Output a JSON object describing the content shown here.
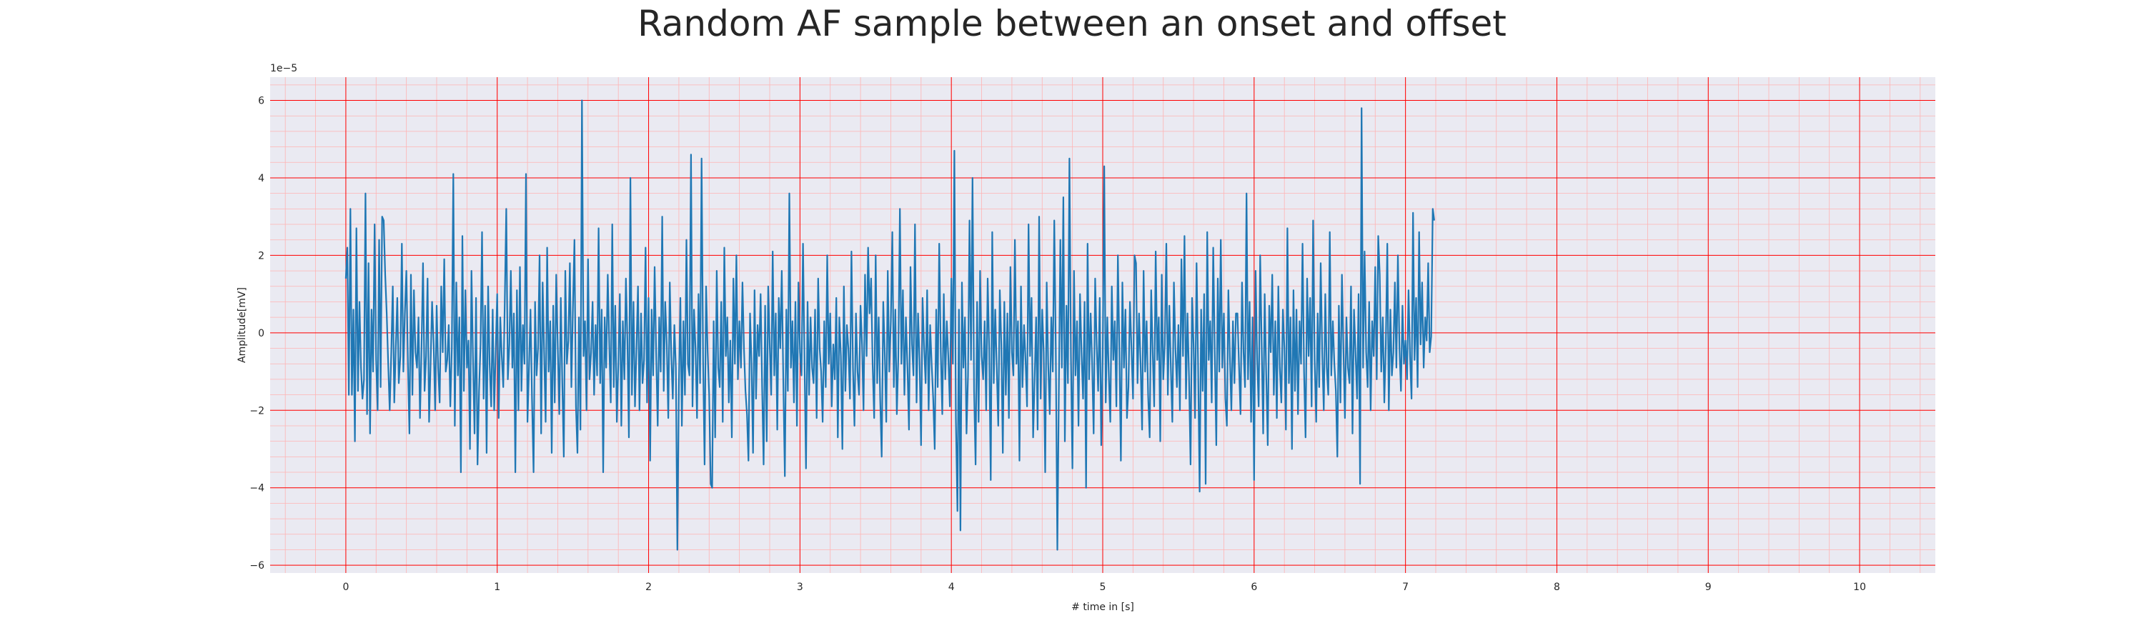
{
  "chart_data": {
    "type": "line",
    "title": "Random AF sample between an onset and offset",
    "xlabel": "# time in [s]",
    "ylabel": "Amplitude[mV]",
    "y_offset_label": "1e−5",
    "xlim": [
      -0.5,
      10.5
    ],
    "ylim": [
      -6.2,
      6.6
    ],
    "x_ticks": [
      0,
      1,
      2,
      3,
      4,
      5,
      6,
      7,
      8,
      9,
      10
    ],
    "x_tick_labels": [
      "0",
      "1",
      "2",
      "3",
      "4",
      "5",
      "6",
      "7",
      "8",
      "9",
      "10"
    ],
    "y_ticks": [
      -6,
      -4,
      -2,
      0,
      2,
      4,
      6
    ],
    "y_tick_labels": [
      "−6",
      "−4",
      "−2",
      "0",
      "2",
      "4",
      "6"
    ],
    "grid": true,
    "minor_grid": true,
    "colors": {
      "background": "#eaeaf2",
      "major_grid": "#ff0000",
      "minor_grid": "#ffb3b3",
      "line": "#1f77b4"
    },
    "series": [
      {
        "x_start": 0,
        "x_step": 0.01,
        "values": [
          1.4,
          2.2,
          -1.6,
          3.2,
          -1.6,
          0.6,
          -2.8,
          2.7,
          -1.5,
          0.8,
          -0.9,
          -1.7,
          -1.2,
          3.6,
          -2.1,
          1.8,
          -2.6,
          0.6,
          -1.0,
          2.8,
          -0.7,
          -2.0,
          2.4,
          -1.4,
          3.0,
          2.9,
          1.5,
          0.5,
          -0.8,
          -2.0,
          -0.5,
          1.2,
          -1.8,
          -0.4,
          0.9,
          -1.3,
          -0.6,
          2.3,
          -1.0,
          0.5,
          1.6,
          -0.8,
          -2.6,
          1.5,
          -1.6,
          1.1,
          -0.5,
          -0.9,
          0.4,
          -2.2,
          -0.4,
          1.8,
          -1.5,
          -0.6,
          1.4,
          -2.3,
          -0.8,
          0.8,
          -0.3,
          -2.0,
          0.7,
          -0.9,
          -1.8,
          1.2,
          -0.5,
          1.9,
          -1.0,
          -0.7,
          0.2,
          -1.9,
          -0.4,
          4.1,
          -2.4,
          1.3,
          -1.1,
          0.4,
          -3.6,
          2.5,
          -1.5,
          1.1,
          -0.9,
          -0.2,
          -3.0,
          1.6,
          -0.6,
          -2.6,
          0.9,
          -3.4,
          -1.5,
          -0.3,
          2.6,
          -1.7,
          0.7,
          -3.1,
          1.2,
          -0.8,
          -1.9,
          0.6,
          -2.0,
          -0.5,
          1.0,
          -2.2,
          0.4,
          -0.6,
          -1.4,
          0.8,
          3.2,
          -1.2,
          -0.3,
          1.6,
          -0.9,
          0.5,
          -3.6,
          1.1,
          -2.0,
          1.7,
          -1.5,
          0.2,
          -0.8,
          4.1,
          -2.3,
          -0.9,
          0.6,
          -1.7,
          -3.6,
          0.8,
          -1.1,
          -0.4,
          2.0,
          -2.6,
          1.3,
          -0.5,
          -2.3,
          2.2,
          -1.0,
          0.3,
          -3.1,
          0.7,
          -1.8,
          1.5,
          -0.4,
          -2.1,
          0.9,
          -1.3,
          -3.2,
          1.6,
          -0.8,
          -0.2,
          1.8,
          -1.4,
          0.6,
          2.4,
          -1.9,
          -3.1,
          0.4,
          -2.5,
          6.0,
          -0.6,
          0.3,
          -2.0,
          1.9,
          -1.2,
          -0.5,
          0.8,
          -1.6,
          0.2,
          -1.1,
          2.7,
          -1.3,
          0.6,
          -3.6,
          0.4,
          -0.9,
          1.5,
          -0.3,
          -1.8,
          2.8,
          -1.4,
          0.7,
          -2.3,
          -0.8,
          1.0,
          -2.4,
          0.3,
          -1.2,
          1.4,
          -0.2,
          -2.7,
          4.0,
          -1.6,
          0.8,
          -1.9,
          -0.4,
          1.2,
          -2.0,
          0.5,
          -1.3,
          -0.7,
          2.2,
          -1.8,
          0.9,
          -3.3,
          0.6,
          -1.1,
          1.7,
          -0.5,
          -2.4,
          0.4,
          -1.0,
          3.0,
          -1.5,
          0.8,
          -0.3,
          -2.2,
          1.3,
          -0.6,
          -1.7,
          0.2,
          -0.9,
          -5.6,
          -1.4,
          0.9,
          -2.4,
          0.3,
          -1.6,
          2.4,
          -0.8,
          -1.1,
          4.6,
          -1.9,
          0.6,
          -0.4,
          -2.2,
          1.0,
          -1.3,
          4.5,
          -0.7,
          -3.4,
          1.2,
          -0.5,
          -1.6,
          -3.9,
          -4.0,
          0.3,
          -2.7,
          1.6,
          -0.9,
          -1.4,
          0.8,
          -2.3,
          2.2,
          -0.6,
          0.4,
          -1.8,
          -0.2,
          -2.7,
          1.4,
          -0.8,
          2.0,
          -1.2,
          0.3,
          -0.9,
          1.3,
          -0.4,
          -1.5,
          -2.1,
          -3.3,
          0.5,
          -0.8,
          -3.1,
          1.1,
          -1.7,
          0.2,
          -0.6,
          1.0,
          -1.4,
          -3.4,
          0.7,
          -2.8,
          1.2,
          -0.3,
          -1.6,
          2.1,
          -1.1,
          0.5,
          -2.5,
          0.9,
          -0.4,
          1.6,
          -1.3,
          -3.7,
          0.6,
          -1.5,
          3.6,
          -0.9,
          0.3,
          -1.8,
          0.8,
          -2.4,
          1.3,
          -0.5,
          -1.1,
          2.3,
          -0.7,
          -3.5,
          0.8,
          -1.6,
          0.4,
          -0.9,
          -1.3,
          0.6,
          -2.2,
          1.4,
          -0.4,
          -1.0,
          -2.3,
          0.3,
          -1.4,
          2.0,
          -0.8,
          0.5,
          -1.9,
          -0.3,
          -1.2,
          0.9,
          -2.7,
          0.4,
          -0.6,
          -3.0,
          1.2,
          -1.5,
          0.2,
          -0.4,
          -1.7,
          2.1,
          -0.9,
          -2.4,
          0.5,
          -1.0,
          -1.6,
          0.7,
          -0.3,
          -2.0,
          1.5,
          -0.6,
          2.2,
          0.5,
          1.4,
          -0.8,
          -2.2,
          2.0,
          -1.3,
          0.4,
          -1.7,
          -3.2,
          0.8,
          -0.5,
          -2.3,
          1.6,
          -1.0,
          0.3,
          2.6,
          -1.4,
          0.6,
          -2.1,
          -0.6,
          3.2,
          -0.8,
          1.1,
          -1.6,
          0.4,
          -0.9,
          -2.5,
          1.7,
          -0.3,
          -1.1,
          2.8,
          -1.8,
          0.5,
          -0.7,
          -2.9,
          0.9,
          -0.4,
          -1.3,
          1.1,
          -2.0,
          0.2,
          -0.8,
          -1.7,
          -3.0,
          0.6,
          -1.4,
          2.3,
          -0.5,
          -2.1,
          1.0,
          -1.2,
          0.3,
          -0.6,
          -1.9,
          1.4,
          -0.8,
          4.7,
          -2.2,
          -4.6,
          0.6,
          -5.1,
          1.3,
          -0.9,
          0.4,
          -2.6,
          -1.1,
          2.9,
          -0.7,
          4.0,
          -1.5,
          -3.4,
          0.8,
          -2.3,
          1.6,
          -0.6,
          -1.2,
          0.3,
          -2.0,
          1.4,
          -0.4,
          -3.8,
          2.6,
          -1.3,
          0.6,
          -0.9,
          -2.4,
          1.1,
          -0.3,
          -3.1,
          0.8,
          -1.6,
          0.5,
          -2.2,
          1.7,
          -0.5,
          -1.1,
          2.4,
          -0.8,
          0.3,
          -3.3,
          1.2,
          -1.4,
          0.2,
          -0.7,
          -1.9,
          2.8,
          -0.6,
          0.9,
          -2.7,
          -1.2,
          0.4,
          -2.5,
          3.0,
          -1.7,
          0.6,
          -0.5,
          -3.6,
          1.3,
          -0.8,
          -2.1,
          0.4,
          -1.0,
          2.9,
          -0.4,
          -5.6,
          -1.5,
          2.4,
          -0.9,
          3.5,
          -2.8,
          0.7,
          -1.3,
          4.5,
          -0.6,
          -3.5,
          1.6,
          -1.1,
          0.3,
          -2.4,
          1.0,
          -0.5,
          -1.7,
          0.8,
          -4.0,
          2.3,
          -1.2,
          0.5,
          -0.8,
          -2.6,
          1.4,
          -0.3,
          -1.5,
          0.9,
          -2.9,
          -0.6,
          4.3,
          -1.8,
          0.4,
          -1.1,
          -2.3,
          1.2,
          -0.7,
          0.3,
          -1.9,
          2.0,
          -0.5,
          -3.3,
          1.3,
          -0.9,
          0.6,
          -2.2,
          -1.4,
          0.8,
          -0.4,
          -1.7,
          2.0,
          1.8,
          -1.3,
          0.5,
          -0.8,
          -2.5,
          1.6,
          -1.0,
          0.3,
          -1.6,
          -2.7,
          1.1,
          -0.5,
          -1.9,
          2.1,
          -0.7,
          0.4,
          -2.8,
          1.5,
          -1.2,
          -0.3,
          2.3,
          -1.6,
          0.7,
          -0.9,
          -2.3,
          1.3,
          -0.4,
          -1.4,
          0.2,
          -2.0,
          1.9,
          -0.6,
          2.5,
          -1.7,
          0.5,
          -1.1,
          -3.4,
          0.9,
          -0.3,
          -2.2,
          1.8,
          -0.8,
          -4.1,
          0.6,
          -1.5,
          1.0,
          -3.9,
          2.6,
          -0.7,
          0.3,
          -1.8,
          2.2,
          -0.4,
          -2.9,
          1.4,
          -1.0,
          2.4,
          -0.9,
          0.5,
          -1.7,
          -2.4,
          1.1,
          -0.6,
          -2.0,
          0.3,
          -1.3,
          0.5,
          0.5,
          -0.8,
          -2.1,
          1.3,
          -0.5,
          -1.4,
          3.6,
          -1.2,
          0.8,
          -2.3,
          0.4,
          -3.8,
          1.6,
          -0.7,
          -1.9,
          2.0,
          -0.3,
          -2.6,
          1.0,
          -1.1,
          -2.9,
          0.7,
          -0.5,
          1.5,
          -1.6,
          0.3,
          -2.2,
          1.2,
          -0.9,
          -1.8,
          0.6,
          -0.4,
          -2.5,
          2.7,
          -1.3,
          0.4,
          -3.0,
          1.1,
          -1.5,
          0.6,
          -2.1,
          0.3,
          -0.8,
          2.3,
          -1.0,
          -2.7,
          1.4,
          -0.6,
          0.9,
          -1.9,
          2.9,
          -0.7,
          -2.3,
          0.5,
          -1.4,
          1.8,
          -0.5,
          -2.0,
          1.0,
          -0.9,
          -1.6,
          2.6,
          -1.1,
          0.3,
          -0.8,
          -1.5,
          -3.2,
          0.7,
          -1.8,
          1.5,
          -0.4,
          -2.2,
          0.4,
          -0.9,
          -1.3,
          1.2,
          -2.6,
          0.6,
          -0.5,
          -1.7,
          1.0,
          -3.9,
          5.8,
          -0.9,
          2.1,
          -0.5,
          -1.4,
          0.8,
          -2.0,
          0.3,
          -0.6,
          1.7,
          -1.2,
          2.5,
          1.5,
          -1.0,
          0.4,
          -1.8,
          -0.3,
          2.3,
          -2.0,
          0.6,
          -1.1,
          -0.5,
          1.3,
          -0.9,
          2.0,
          -0.4,
          -1.5,
          0.7,
          -0.8,
          -0.2,
          -1.2,
          1.1,
          -0.6,
          -1.7,
          3.1,
          -0.7,
          0.9,
          -1.4,
          2.6,
          -0.3,
          1.3,
          -0.9,
          0.4,
          -0.2,
          1.8,
          -0.5,
          -0.1,
          3.2,
          2.9
        ]
      }
    ]
  }
}
